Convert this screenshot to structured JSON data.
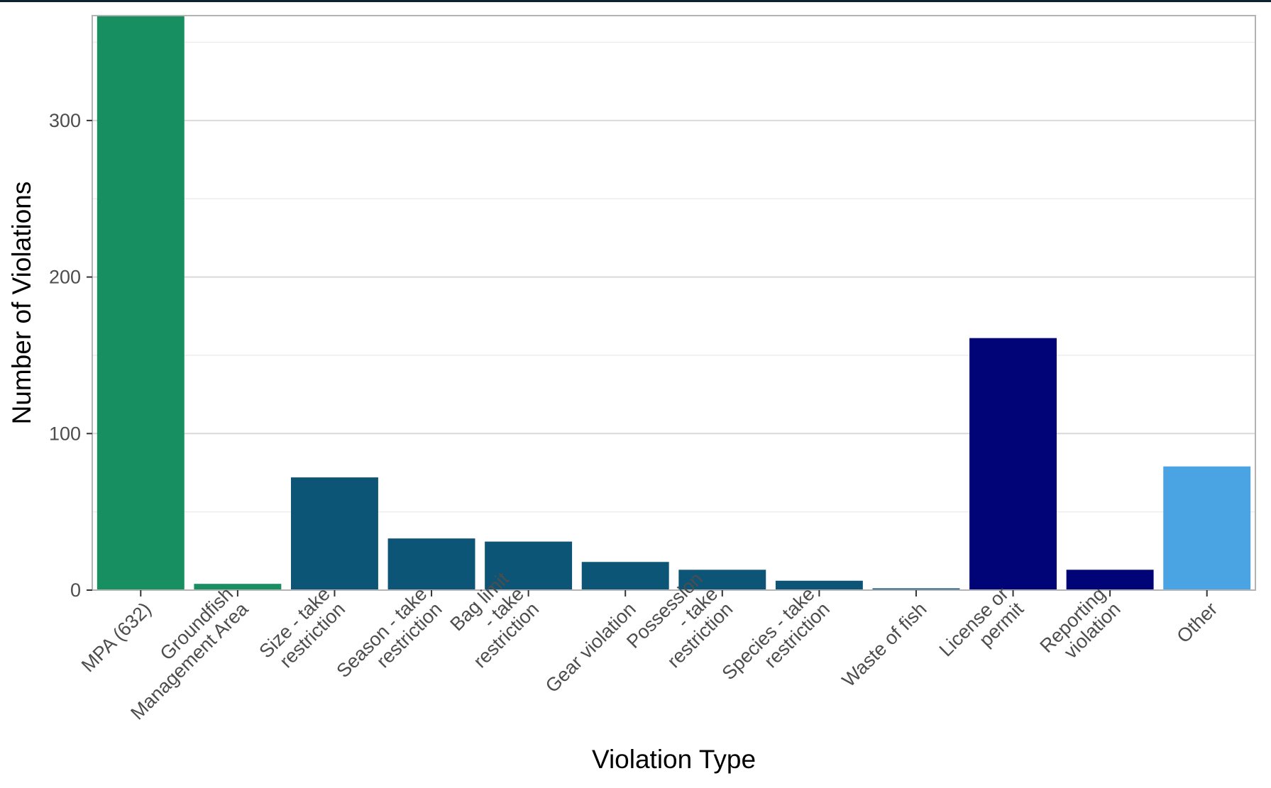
{
  "chart_data": {
    "type": "bar",
    "title": "",
    "xlabel": "Violation Type",
    "ylabel": "Number of Violations",
    "ylim": [
      0,
      367
    ],
    "yticks": [
      0,
      100,
      200,
      300
    ],
    "ytick_labels": [
      "0",
      "100",
      "200",
      "300"
    ],
    "grid": true,
    "legend": "none",
    "categories": [
      {
        "label_lines": [
          "MPA (632)"
        ],
        "value": 632,
        "color": "#178f60"
      },
      {
        "label_lines": [
          "Groundfish",
          "Management Area"
        ],
        "value": 4,
        "color": "#178f60"
      },
      {
        "label_lines": [
          "Size - take",
          "restriction"
        ],
        "value": 72,
        "color": "#0d5577"
      },
      {
        "label_lines": [
          "Season - take",
          "restriction"
        ],
        "value": 33,
        "color": "#0d5577"
      },
      {
        "label_lines": [
          "Bag limit",
          "- take",
          "restriction"
        ],
        "value": 31,
        "color": "#0d5577"
      },
      {
        "label_lines": [
          "Gear violation"
        ],
        "value": 18,
        "color": "#0d5577"
      },
      {
        "label_lines": [
          "Possession",
          "- take",
          "restriction"
        ],
        "value": 13,
        "color": "#0d5577"
      },
      {
        "label_lines": [
          "Species - take",
          "restriction"
        ],
        "value": 6,
        "color": "#0d5577"
      },
      {
        "label_lines": [
          "Waste of fish"
        ],
        "value": 1,
        "color": "#0d5577"
      },
      {
        "label_lines": [
          "License or",
          "permit"
        ],
        "value": 161,
        "color": "#000477"
      },
      {
        "label_lines": [
          "Reporting",
          "violation"
        ],
        "value": 13,
        "color": "#000477"
      },
      {
        "label_lines": [
          "Other"
        ],
        "value": 79,
        "color": "#4aa3e2"
      }
    ]
  }
}
